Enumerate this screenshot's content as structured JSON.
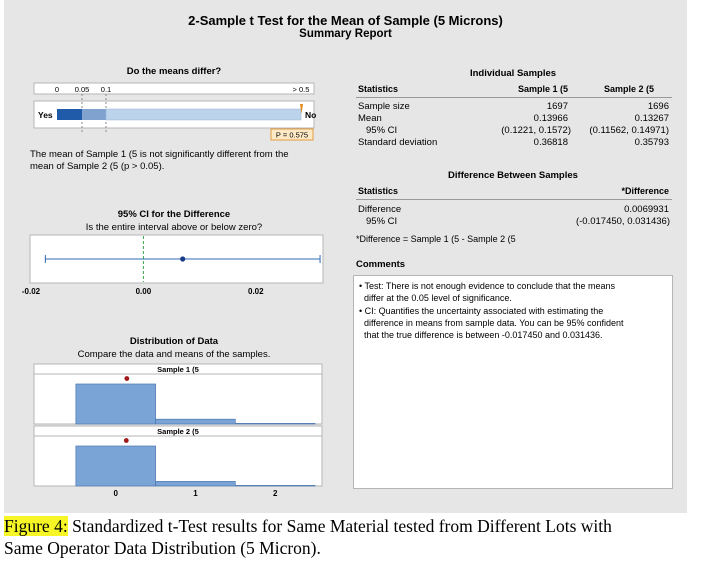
{
  "report": {
    "title": "2-Sample t Test for the Mean of Sample (5 Microns)",
    "subtitle": "Summary Report"
  },
  "differ": {
    "title": "Do the means differ?",
    "ticks": [
      "0",
      "0.05",
      "0.1",
      "> 0.5"
    ],
    "yes_label": "Yes",
    "no_label": "No",
    "p_label": "P = 0.575",
    "p_value": 0.575,
    "conclusion": [
      "The mean of Sample 1 (5  is not significantly different from the",
      "mean of Sample 2 (5  (p > 0.05)."
    ]
  },
  "ci": {
    "title": "95% CI for the Difference",
    "question": "Is the entire interval above or below zero?",
    "ticks": [
      "-0.02",
      "0.00",
      "0.02"
    ],
    "estimate": 0.0069931,
    "lower": -0.01745,
    "upper": 0.031436
  },
  "distribution": {
    "title": "Distribution of Data",
    "subtitle": "Compare the data and means of the samples.",
    "xticks": [
      "0",
      "1",
      "2"
    ]
  },
  "individual": {
    "title": "Individual Samples",
    "headers": [
      "Statistics",
      "Sample 1 (5",
      "Sample 2 (5"
    ],
    "rows": [
      [
        "Sample size",
        "1697",
        "1696"
      ],
      [
        "Mean",
        "0.13966",
        "0.13267"
      ],
      [
        "95% CI",
        "(0.1221, 0.1572)",
        "(0.11562, 0.14971)"
      ],
      [
        "Standard deviation",
        "0.36818",
        "0.35793"
      ]
    ]
  },
  "difference": {
    "title": "Difference Between Samples",
    "headers": [
      "Statistics",
      "*Difference"
    ],
    "rows": [
      [
        "Difference",
        "0.0069931"
      ],
      [
        "95% CI",
        "(-0.017450, 0.031436)"
      ]
    ],
    "footnote": "*Difference = Sample 1 (5  - Sample 2 (5"
  },
  "comments": {
    "title": "Comments",
    "bullets": [
      [
        "• Test: There is not enough evidence to conclude that the means",
        "differ at the 0.05 level of significance."
      ],
      [
        "• CI: Quantifies the uncertainty associated with estimating the",
        "difference in means from sample data. You can be 95% confident",
        "that the true difference is between -0.017450 and 0.031436."
      ]
    ]
  },
  "caption": {
    "label": "Figure 4:",
    "text": " Standardized t-Test results for Same Material tested from Different Lots with",
    "text2": "Same Operator Data Distribution (5 Micron)."
  },
  "colors": {
    "dark_blue": "#1f5ba8",
    "mid_blue": "#7fa2cf",
    "light_blue": "#bcd3ec",
    "hist_blue": "#7aa3d6",
    "mean_dot": "#a01818",
    "ci_line": "#2c6bb3",
    "zero_line": "#3aa04a",
    "p_marker": "#e08a1a"
  },
  "chart_data": [
    {
      "type": "bar",
      "title": "Do the means differ?",
      "categories": [
        "0-0.05",
        "0.05-0.1",
        "0.1-0.5"
      ],
      "scale_ticks": [
        "0",
        "0.05",
        "0.1",
        "> 0.5"
      ],
      "p_value": 0.575,
      "p_label": "P = 0.575",
      "left_label": "Yes",
      "right_label": "No"
    },
    {
      "type": "scatter",
      "title": "95% CI for the Difference",
      "subtitle": "Is the entire interval above or below zero?",
      "estimate": 0.0069931,
      "interval": [
        -0.01745,
        0.031436
      ],
      "reference": 0,
      "xlim": [
        -0.02,
        0.03
      ],
      "xticks": [
        -0.02,
        0.0,
        0.02
      ]
    },
    {
      "type": "bar",
      "title": "Distribution of Data",
      "subtitle": "Compare the data and means of the samples.",
      "panels": [
        "Sample 1 (5",
        "Sample 2 (5"
      ],
      "bins": [
        [
          -0.5,
          0.5
        ],
        [
          0.5,
          1.5
        ],
        [
          1.5,
          2.5
        ]
      ],
      "series": [
        {
          "name": "Sample 1 (5",
          "values": [
            1.0,
            0.12,
            0.005
          ],
          "mean": 0.13966
        },
        {
          "name": "Sample 2 (5",
          "values": [
            1.0,
            0.115,
            0.005
          ],
          "mean": 0.13267
        }
      ],
      "xlim": [
        -1,
        2.6
      ],
      "xticks": [
        0,
        1,
        2
      ]
    }
  ]
}
